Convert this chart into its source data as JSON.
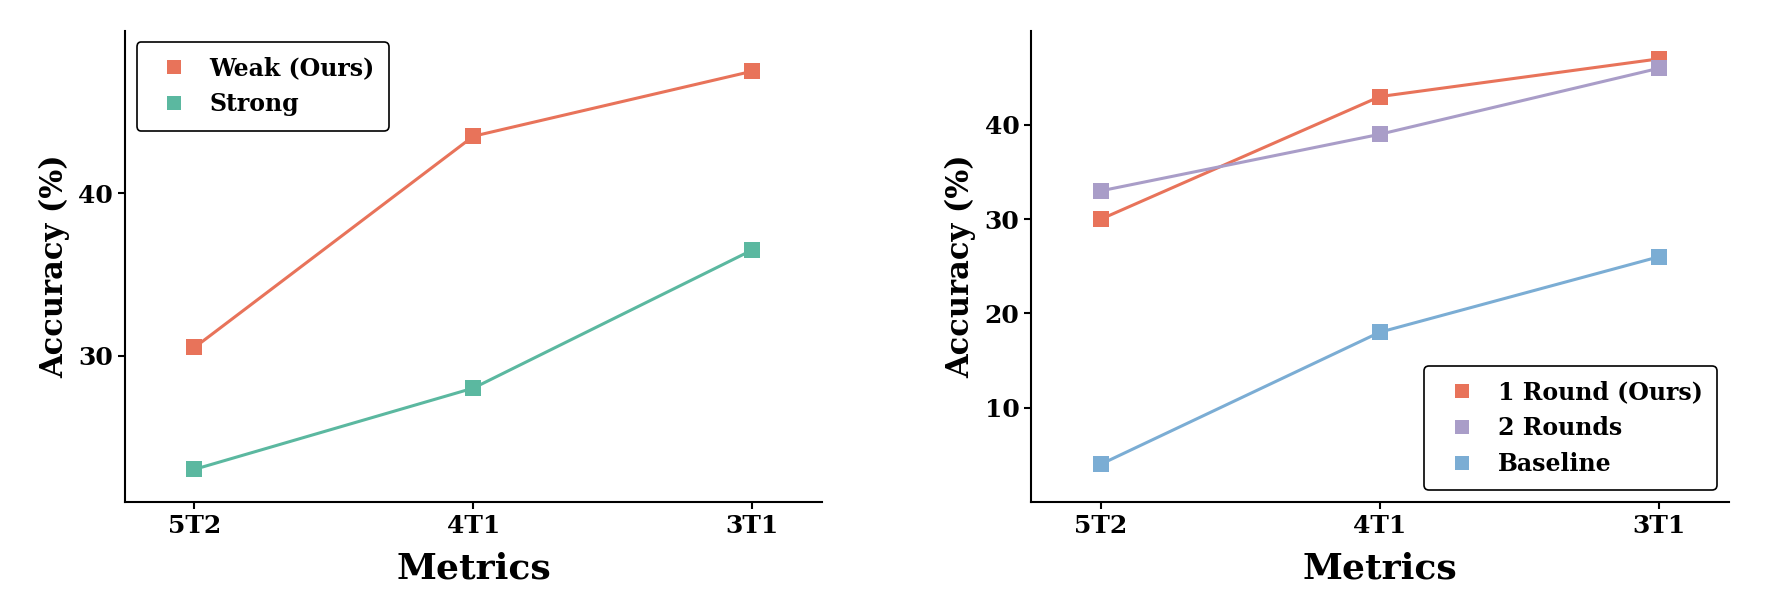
{
  "left": {
    "x_labels": [
      "5T2",
      "4T1",
      "3T1"
    ],
    "series": [
      {
        "label": "Weak (Ours)",
        "values": [
          30.5,
          43.5,
          47.5
        ],
        "color": "#E8735A",
        "marker": "s"
      },
      {
        "label": "Strong",
        "values": [
          23.0,
          28.0,
          36.5
        ],
        "color": "#5BB8A0",
        "marker": "s"
      }
    ],
    "ylabel": "Accuracy (%)",
    "xlabel": "Metrics",
    "ylim": [
      21,
      50
    ],
    "yticks": [
      30,
      40
    ],
    "legend_loc": "upper left"
  },
  "right": {
    "x_labels": [
      "5T2",
      "4T1",
      "3T1"
    ],
    "series": [
      {
        "label": "1 Round",
        "label_small": " (Ours)",
        "values": [
          30.0,
          43.0,
          47.0
        ],
        "color": "#E8735A",
        "marker": "s"
      },
      {
        "label": "2 Rounds",
        "label_small": "",
        "values": [
          33.0,
          39.0,
          46.0
        ],
        "color": "#A99DC8",
        "marker": "s"
      },
      {
        "label": "Baseline",
        "label_small": "",
        "values": [
          4.0,
          18.0,
          26.0
        ],
        "color": "#7BADD4",
        "marker": "s"
      }
    ],
    "ylabel": "Accuracy (%)",
    "xlabel": "Metrics",
    "ylim": [
      0,
      50
    ],
    "yticks": [
      10,
      20,
      30,
      40
    ],
    "legend_loc": "lower right"
  },
  "figure_width": 17.82,
  "figure_height": 6.12,
  "dpi": 100,
  "background_color": "#FFFFFF",
  "linewidth": 2.2,
  "markersize": 11,
  "axis_label_fontsize": 22,
  "xlabel_fontsize": 26,
  "tick_fontsize": 18,
  "legend_fontsize": 17,
  "legend_small_fontsize": 13
}
